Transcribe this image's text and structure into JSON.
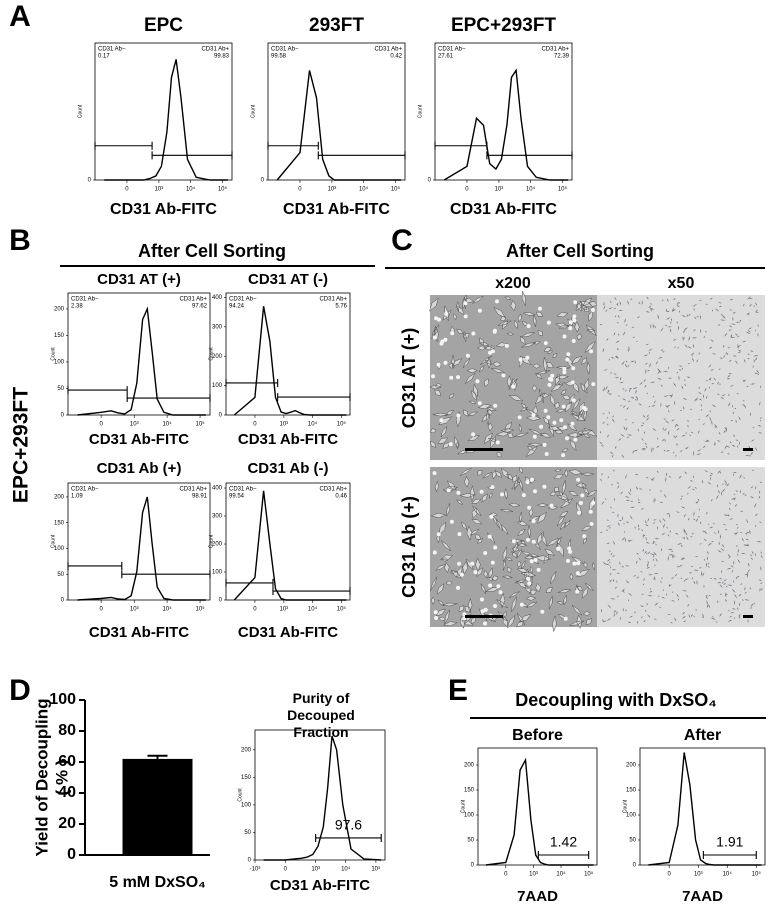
{
  "panel_letters": [
    "A",
    "B",
    "C",
    "D",
    "E"
  ],
  "panel_b": {
    "header": "After Cell Sorting",
    "row_label": "EPC+293FT"
  },
  "panel_c": {
    "header": "After Cell Sorting",
    "columns": [
      "x200",
      "x50"
    ],
    "rows": [
      "CD31 AT (+)",
      "CD31 Ab (+)"
    ]
  },
  "panel_e": {
    "header": "Decoupling with DxSO₄"
  },
  "chart_data": [
    {
      "type": "line",
      "xscale": "biexponential",
      "title": "EPC",
      "xlabel": "CD31 Ab-FITC",
      "ylabel": "Count",
      "x": [
        -500,
        0,
        150,
        300,
        500,
        800,
        1200,
        1800,
        2500,
        3500,
        5000,
        8000,
        15000,
        40000,
        150000
      ],
      "series": [
        {
          "color": "#000000",
          "values": [
            0,
            0,
            0,
            0,
            1,
            3,
            10,
            35,
            75,
            88,
            60,
            15,
            2,
            0,
            0
          ]
        }
      ],
      "xlim": [
        -1000,
        200000
      ],
      "ylim": [
        0,
        100
      ],
      "xticks": [
        0,
        {
          "value": 1000,
          "label": "10³"
        },
        {
          "value": 10000,
          "label": "10⁴"
        },
        {
          "value": 100000,
          "label": "10⁵"
        }
      ],
      "yticks": [
        0
      ],
      "gates": [
        {
          "x": [
            -1000,
            600
          ],
          "y": 25
        },
        {
          "x": [
            600,
            200000
          ],
          "y": 18
        }
      ],
      "gate_names": [
        "CD31 Ab−",
        "CD31 Ab+"
      ],
      "gate_values": [
        0.17,
        99.83
      ]
    },
    {
      "type": "line",
      "xscale": "biexponential",
      "title": "293FT",
      "xlabel": "CD31 Ab-FITC",
      "ylabel": "Count",
      "x": [
        -500,
        0,
        150,
        300,
        500,
        800,
        1200,
        1800,
        2500,
        3500,
        5000,
        8000,
        15000,
        40000,
        150000
      ],
      "series": [
        {
          "color": "#000000",
          "values": [
            0,
            20,
            80,
            60,
            15,
            3,
            0,
            0,
            0,
            0,
            0,
            0,
            0,
            0,
            0
          ]
        }
      ],
      "xlim": [
        -1000,
        200000
      ],
      "ylim": [
        0,
        100
      ],
      "xticks": [
        0,
        {
          "value": 1000,
          "label": "10³"
        },
        {
          "value": 10000,
          "label": "10⁴"
        },
        {
          "value": 100000,
          "label": "10⁵"
        }
      ],
      "yticks": [
        0
      ],
      "gates": [
        {
          "x": [
            -1000,
            350
          ],
          "y": 25
        },
        {
          "x": [
            350,
            200000
          ],
          "y": 18
        }
      ],
      "gate_names": [
        "CD31 Ab−",
        "CD31 Ab+"
      ],
      "gate_values": [
        99.58,
        0.42
      ]
    },
    {
      "type": "line",
      "xscale": "biexponential",
      "title": "EPC+293FT",
      "xlabel": "CD31 Ab-FITC",
      "ylabel": "Count",
      "x": [
        -500,
        0,
        150,
        300,
        500,
        800,
        1200,
        1800,
        2500,
        3500,
        5000,
        8000,
        15000,
        40000,
        150000
      ],
      "series": [
        {
          "color": "#000000",
          "values": [
            0,
            10,
            45,
            40,
            12,
            8,
            15,
            40,
            75,
            80,
            45,
            10,
            2,
            0,
            0
          ]
        }
      ],
      "xlim": [
        -1000,
        200000
      ],
      "ylim": [
        0,
        100
      ],
      "xticks": [
        0,
        {
          "value": 1000,
          "label": "10³"
        },
        {
          "value": 10000,
          "label": "10⁴"
        },
        {
          "value": 100000,
          "label": "10⁵"
        }
      ],
      "yticks": [
        0
      ],
      "gates": [
        {
          "x": [
            -1000,
            400
          ],
          "y": 25
        },
        {
          "x": [
            400,
            200000
          ],
          "y": 18
        }
      ],
      "gate_names": [
        "CD31 Ab−",
        "CD31 Ab+"
      ],
      "gate_values": [
        27.61,
        72.39
      ]
    },
    {
      "type": "line",
      "xscale": "biexponential",
      "title": "CD31 AT (+)",
      "xlabel": "CD31 Ab-FITC",
      "ylabel": "Count",
      "x": [
        -500,
        0,
        150,
        300,
        500,
        800,
        1200,
        1800,
        2500,
        3500,
        5000,
        8000,
        15000,
        40000,
        150000
      ],
      "series": [
        {
          "color": "#000000",
          "values": [
            0,
            5,
            8,
            4,
            2,
            10,
            60,
            180,
            200,
            120,
            30,
            5,
            0,
            0,
            0
          ]
        }
      ],
      "xlim": [
        -1000,
        200000
      ],
      "ylim": [
        0,
        230
      ],
      "xticks": [
        0,
        {
          "value": 1000,
          "label": "10³"
        },
        {
          "value": 10000,
          "label": "10⁴"
        },
        {
          "value": 100000,
          "label": "10⁵"
        }
      ],
      "yticks": [
        0,
        50,
        100,
        150,
        200
      ],
      "gates": [
        {
          "x": [
            -1000,
            600
          ],
          "y": 47
        },
        {
          "x": [
            600,
            200000
          ],
          "y": 32
        }
      ],
      "gate_names": [
        "CD31 Ab−",
        "CD31 Ab+"
      ],
      "gate_values": [
        2.38,
        97.62
      ]
    },
    {
      "type": "line",
      "xscale": "biexponential",
      "title": "CD31 AT (-)",
      "xlabel": "CD31 Ab-FITC",
      "ylabel": "Count",
      "x": [
        -500,
        0,
        150,
        300,
        500,
        800,
        1200,
        1800,
        2500,
        3500,
        5000,
        8000,
        15000,
        40000,
        150000
      ],
      "series": [
        {
          "color": "#000000",
          "values": [
            0,
            60,
            370,
            250,
            60,
            10,
            5,
            10,
            15,
            8,
            2,
            0,
            0,
            0,
            0
          ]
        }
      ],
      "xlim": [
        -1000,
        200000
      ],
      "ylim": [
        0,
        415
      ],
      "xticks": [
        0,
        {
          "value": 1000,
          "label": "10³"
        },
        {
          "value": 10000,
          "label": "10⁴"
        },
        {
          "value": 100000,
          "label": "10⁵"
        }
      ],
      "yticks": [
        0,
        100,
        200,
        300,
        400
      ],
      "gates": [
        {
          "x": [
            -1000,
            600
          ],
          "y": 109
        },
        {
          "x": [
            600,
            200000
          ],
          "y": 61
        }
      ],
      "gate_names": [
        "CD31 Ab−",
        "CD31 Ab+"
      ],
      "gate_values": [
        94.24,
        5.76
      ]
    },
    {
      "type": "line",
      "xscale": "biexponential",
      "title": "CD31 Ab (+)",
      "xlabel": "CD31 Ab-FITC",
      "ylabel": "Count",
      "x": [
        -500,
        0,
        150,
        300,
        500,
        800,
        1200,
        1800,
        2500,
        3500,
        5000,
        8000,
        15000,
        40000,
        150000
      ],
      "series": [
        {
          "color": "#000000",
          "values": [
            0,
            3,
            5,
            2,
            1,
            8,
            55,
            170,
            200,
            110,
            25,
            3,
            0,
            0,
            0
          ]
        }
      ],
      "xlim": [
        -1000,
        200000
      ],
      "ylim": [
        0,
        227
      ],
      "xticks": [
        0,
        {
          "value": 1000,
          "label": "10³"
        },
        {
          "value": 10000,
          "label": "10⁴"
        },
        {
          "value": 100000,
          "label": "10⁵"
        }
      ],
      "yticks": [
        0,
        50,
        100,
        150,
        200
      ],
      "gates": [
        {
          "x": [
            -1000,
            400
          ],
          "y": 66
        },
        {
          "x": [
            400,
            200000
          ],
          "y": 50
        }
      ],
      "gate_names": [
        "CD31 Ab−",
        "CD31 Ab+"
      ],
      "gate_values": [
        1.09,
        98.91
      ]
    },
    {
      "type": "line",
      "xscale": "biexponential",
      "title": "CD31 Ab (-)",
      "xlabel": "CD31 Ab-FITC",
      "ylabel": "Count",
      "x": [
        -500,
        0,
        150,
        300,
        500,
        800,
        1200,
        1800,
        2500,
        3500,
        5000,
        8000,
        15000,
        40000,
        150000
      ],
      "series": [
        {
          "color": "#000000",
          "values": [
            0,
            80,
            390,
            200,
            40,
            5,
            0,
            0,
            0,
            0,
            0,
            0,
            0,
            0,
            0
          ]
        }
      ],
      "xlim": [
        -1000,
        200000
      ],
      "ylim": [
        0,
        418
      ],
      "xticks": [
        0,
        {
          "value": 1000,
          "label": "10³"
        },
        {
          "value": 10000,
          "label": "10⁴"
        },
        {
          "value": 100000,
          "label": "10⁵"
        }
      ],
      "yticks": [
        0,
        100,
        200,
        300,
        400
      ],
      "gates": [
        {
          "x": [
            -1000,
            400
          ],
          "y": 61
        },
        {
          "x": [
            400,
            200000
          ],
          "y": 32
        }
      ],
      "gate_names": [
        "CD31 Ab−",
        "CD31 Ab+"
      ],
      "gate_values": [
        99.54,
        0.46
      ]
    },
    {
      "type": "bar",
      "categories": [
        "5 mM DxSO₄"
      ],
      "values": [
        62
      ],
      "error": [
        2
      ],
      "color": "#000000",
      "ylabel": "Yield of Decoupling",
      "ylabel_unit": "( % )",
      "ylim": [
        0,
        100
      ],
      "yticks": [
        0,
        20,
        40,
        60,
        80,
        100
      ]
    },
    {
      "type": "line",
      "xscale": "biexponential",
      "title": "Purity of Decouped Fraction",
      "xlabel": "CD31 Ab-FITC",
      "ylabel": "Count",
      "x": [
        -500,
        0,
        150,
        300,
        500,
        800,
        1200,
        1800,
        2500,
        3500,
        5000,
        8000,
        15000,
        40000,
        150000
      ],
      "series": [
        {
          "color": "#000000",
          "values": [
            0,
            0,
            2,
            3,
            5,
            10,
            25,
            60,
            130,
            225,
            200,
            100,
            20,
            2,
            0
          ]
        }
      ],
      "xlim": [
        -1000,
        200000
      ],
      "ylim": [
        0,
        236
      ],
      "xticks": [
        {
          "value": -1000,
          "label": "-10³"
        },
        0,
        {
          "value": 1000,
          "label": "10³"
        },
        {
          "value": 10000,
          "label": "10⁴"
        },
        {
          "value": 100000,
          "label": "10⁵"
        }
      ],
      "yticks": [
        0,
        50,
        100,
        150,
        200
      ],
      "gates": [
        {
          "x": [
            1000,
            150000
          ],
          "y": 40
        }
      ],
      "gate_label": 97.6
    },
    {
      "type": "line",
      "xscale": "biexponential",
      "title": "Before",
      "xlabel": "7AAD",
      "ylabel": "Count",
      "x": [
        -500,
        0,
        150,
        300,
        500,
        800,
        1200,
        1800,
        2500,
        3500,
        5000,
        8000,
        15000,
        40000,
        150000
      ],
      "series": [
        {
          "color": "#000000",
          "values": [
            0,
            5,
            60,
            190,
            210,
            90,
            20,
            5,
            2,
            0,
            0,
            0,
            0,
            0,
            0
          ]
        }
      ],
      "xlim": [
        -1000,
        200000
      ],
      "ylim": [
        0,
        234
      ],
      "xticks": [
        0,
        {
          "value": 1000,
          "label": "10³"
        },
        {
          "value": 10000,
          "label": "10⁴"
        },
        {
          "value": 100000,
          "label": "10⁵"
        }
      ],
      "yticks": [
        0,
        50,
        100,
        150,
        200
      ],
      "gates": [
        {
          "x": [
            1500,
            100000
          ],
          "y": 20
        }
      ],
      "gate_label": 1.42
    },
    {
      "type": "line",
      "xscale": "biexponential",
      "title": "After",
      "xlabel": "7AAD",
      "ylabel": "Count",
      "x": [
        -500,
        0,
        150,
        300,
        500,
        800,
        1200,
        1800,
        2500,
        3500,
        5000,
        8000,
        15000,
        40000,
        150000
      ],
      "series": [
        {
          "color": "#000000",
          "values": [
            0,
            5,
            80,
            225,
            160,
            50,
            10,
            3,
            1,
            0,
            0,
            0,
            0,
            0,
            0
          ]
        }
      ],
      "xlim": [
        -1000,
        200000
      ],
      "ylim": [
        0,
        234
      ],
      "xticks": [
        0,
        {
          "value": 1000,
          "label": "10³"
        },
        {
          "value": 10000,
          "label": "10⁴"
        },
        {
          "value": 100000,
          "label": "10⁵"
        }
      ],
      "yticks": [
        0,
        50,
        100,
        150,
        200
      ],
      "gates": [
        {
          "x": [
            1500,
            100000
          ],
          "y": 20
        }
      ],
      "gate_label": 1.91
    }
  ]
}
